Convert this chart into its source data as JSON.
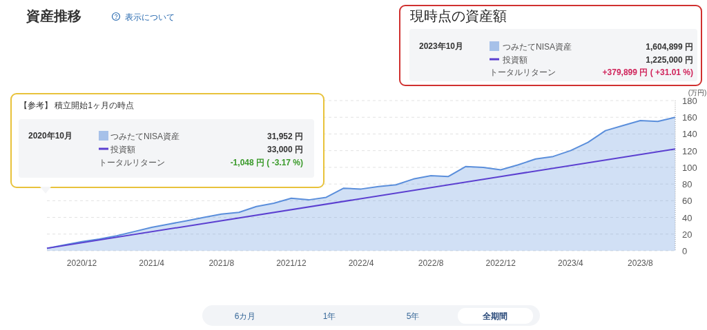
{
  "chart_data": {
    "type": "area",
    "title": "資産推移",
    "ylabel": "(万円)",
    "x": [
      "2020-10",
      "2020-11",
      "2020-12",
      "2021-01",
      "2021-02",
      "2021-03",
      "2021-04",
      "2021-05",
      "2021-06",
      "2021-07",
      "2021-08",
      "2021-09",
      "2021-10",
      "2021-11",
      "2021-12",
      "2022-01",
      "2022-02",
      "2022-03",
      "2022-04",
      "2022-05",
      "2022-06",
      "2022-07",
      "2022-08",
      "2022-09",
      "2022-10",
      "2022-11",
      "2022-12",
      "2023-01",
      "2023-02",
      "2023-03",
      "2023-04",
      "2023-05",
      "2023-06",
      "2023-07",
      "2023-08",
      "2023-09",
      "2023-10"
    ],
    "series": [
      {
        "name": "つみたてNISA資産",
        "color": "#5a8edb",
        "values": [
          3,
          7,
          11,
          14,
          18,
          23,
          28,
          32,
          36,
          40,
          44,
          46,
          53,
          57,
          63,
          61,
          64,
          75,
          74,
          77,
          79,
          86,
          90,
          89,
          101,
          100,
          97,
          103,
          110,
          113,
          120,
          130,
          144,
          150,
          156,
          155,
          160
        ]
      },
      {
        "name": "投資額",
        "type": "line",
        "color": "#5b3fd0",
        "x": [
          "2020-10",
          "2023-10"
        ],
        "values": [
          3,
          122
        ]
      }
    ],
    "xlim": [
      "2020-10",
      "2023-10"
    ],
    "xticks": [
      {
        "value": "2020-12",
        "label": "2020/12"
      },
      {
        "value": "2021-04",
        "label": "2021/4"
      },
      {
        "value": "2021-08",
        "label": "2021/8"
      },
      {
        "value": "2021-12",
        "label": "2021/12"
      },
      {
        "value": "2022-04",
        "label": "2022/4"
      },
      {
        "value": "2022-08",
        "label": "2022/8"
      },
      {
        "value": "2022-12",
        "label": "2022/12"
      },
      {
        "value": "2023-04",
        "label": "2023/4"
      },
      {
        "value": "2023-08",
        "label": "2023/8"
      }
    ],
    "ylim": [
      0,
      180
    ],
    "yticks": [
      0,
      20,
      40,
      60,
      80,
      100,
      120,
      140,
      160,
      180
    ],
    "grid": "y",
    "legend": "top left",
    "annotations": [
      "表示について",
      "現時点の資産額",
      "2023年10月",
      "1,604,899 円",
      "1,225,000 円",
      "トータルリターン",
      "+379,899 円 ( +31.01 %)",
      "【参考】 積立開始1ヶ月の時点",
      "2020年10月",
      "31,952 円",
      "33,000 円",
      "トータルリターン",
      "-1,048 円 ( -3.17 %)",
      "6カ月",
      "1年",
      "5年",
      "全期間"
    ]
  }
}
